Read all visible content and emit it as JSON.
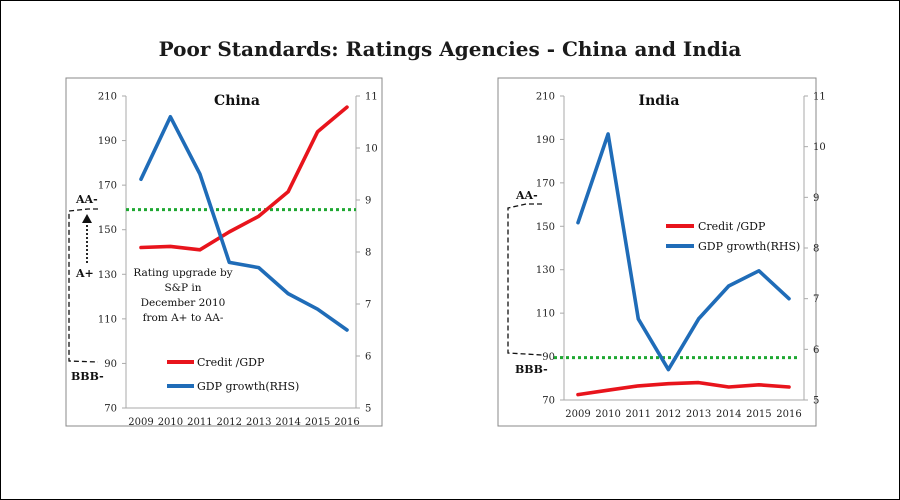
{
  "title": "Poor Standards: Ratings Agencies - China and India",
  "colors": {
    "credit": "#e8141c",
    "gdp": "#1f6cb8",
    "threshold": "#1fa832",
    "frame": "#888888"
  },
  "chart_data": [
    {
      "type": "line",
      "title": "China",
      "categories": [
        "2009",
        "2010",
        "2011",
        "2012",
        "2013",
        "2014",
        "2015",
        "2016"
      ],
      "ylim_left": [
        70,
        210
      ],
      "yticks_left": [
        70,
        90,
        110,
        130,
        150,
        170,
        190,
        210
      ],
      "ylim_right": [
        5,
        11
      ],
      "yticks_right": [
        5,
        6,
        7,
        8,
        9,
        10,
        11
      ],
      "series": [
        {
          "name": "Credit /GDP",
          "axis": "left",
          "color": "#e8141c",
          "values": [
            142,
            142.5,
            141,
            149,
            156,
            167,
            194,
            205
          ]
        },
        {
          "name": "GDP growth(RHS)",
          "axis": "right",
          "color": "#1f6cb8",
          "values": [
            9.4,
            10.6,
            9.5,
            7.8,
            7.7,
            7.2,
            6.9,
            6.5
          ]
        }
      ],
      "threshold": {
        "axis": "left",
        "value": 159,
        "style": "dotted",
        "color": "#1fa832"
      },
      "ratings": [
        {
          "label": "AA-",
          "level": 160
        },
        {
          "label": "A+",
          "level": 135
        },
        {
          "label": "BBB-",
          "level": 89
        }
      ],
      "annotation": [
        "Rating upgrade by",
        "S&P  in",
        "December 2010",
        "from A+ to AA-"
      ],
      "legend_position": "bottom-center",
      "grid": false
    },
    {
      "type": "line",
      "title": "India",
      "categories": [
        "2009",
        "2010",
        "2011",
        "2012",
        "2013",
        "2014",
        "2015",
        "2016"
      ],
      "ylim_left": [
        70,
        210
      ],
      "yticks_left": [
        70,
        90,
        110,
        130,
        150,
        170,
        190,
        210
      ],
      "ylim_right": [
        5,
        11
      ],
      "yticks_right": [
        5,
        6,
        7,
        8,
        9,
        10,
        11
      ],
      "series": [
        {
          "name": "Credit /GDP",
          "axis": "left",
          "color": "#e8141c",
          "values": [
            72.5,
            74.5,
            76.5,
            77.5,
            78,
            76,
            77,
            76
          ]
        },
        {
          "name": "GDP growth(RHS)",
          "axis": "right",
          "color": "#1f6cb8",
          "values": [
            8.5,
            10.25,
            6.6,
            5.6,
            6.6,
            7.25,
            7.55,
            7.0
          ]
        }
      ],
      "threshold": {
        "axis": "left",
        "value": 89.5,
        "style": "dotted",
        "color": "#1fa832"
      },
      "ratings": [
        {
          "label": "AA-",
          "level": 162
        },
        {
          "label": "BBB-",
          "level": 89
        }
      ],
      "legend_position": "right",
      "grid": false
    }
  ]
}
